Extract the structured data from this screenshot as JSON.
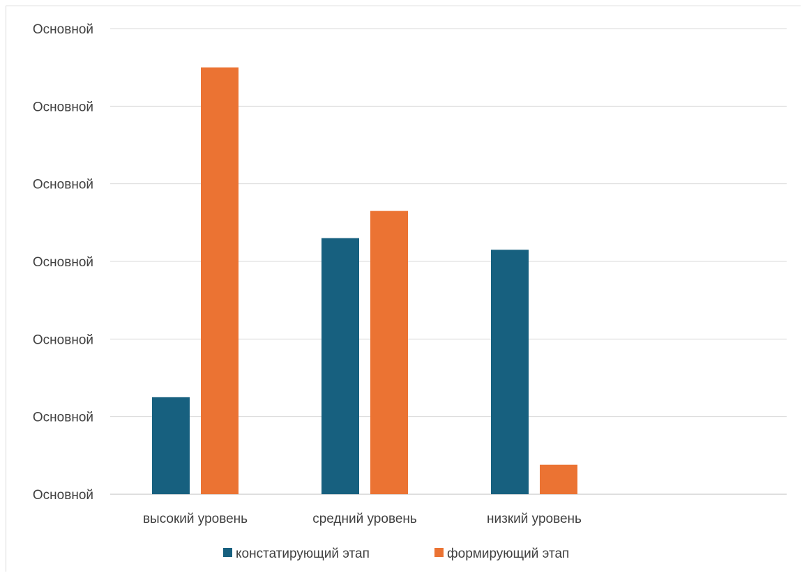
{
  "chart_data": {
    "type": "bar",
    "categories": [
      "высокий уровень",
      "средний уровень",
      "низкий уровень"
    ],
    "y_tick_labels": [
      "Основной",
      "Основной",
      "Основной",
      "Основной",
      "Основной",
      "Основной",
      "Основной"
    ],
    "ylim": [
      0,
      60
    ],
    "grid": true,
    "legend_position": "bottom",
    "series": [
      {
        "name": "констатирующий этап",
        "color": "#17607f",
        "values": [
          12.5,
          33,
          31.5
        ]
      },
      {
        "name": "формирующий этап",
        "color": "#eb7333",
        "values": [
          55,
          36.5,
          3.8
        ]
      }
    ]
  }
}
